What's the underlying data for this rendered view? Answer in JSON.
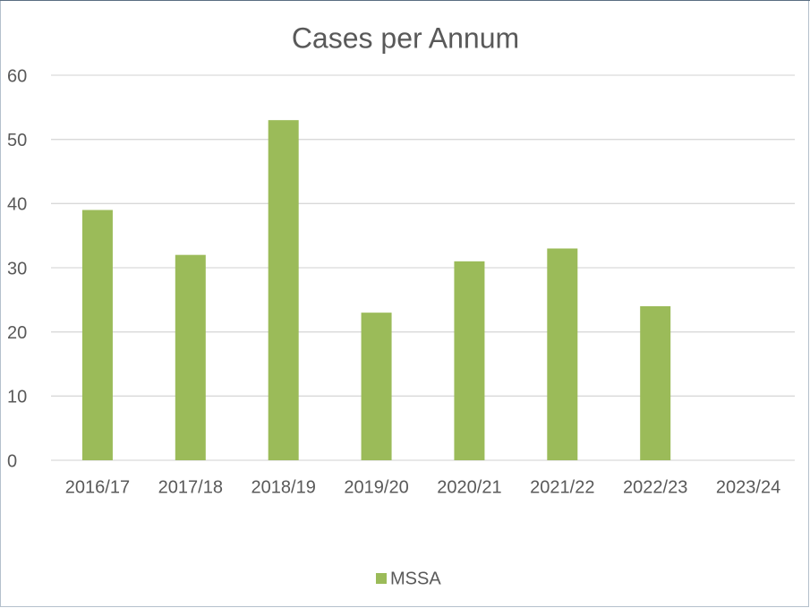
{
  "chart_data": {
    "type": "bar",
    "title": "Cases per Annum",
    "categories": [
      "2016/17",
      "2017/18",
      "2018/19",
      "2019/20",
      "2020/21",
      "2021/22",
      "2022/23",
      "2023/24"
    ],
    "series": [
      {
        "name": "MSSA",
        "color": "#9bbb59",
        "values": [
          39,
          32,
          53,
          23,
          31,
          33,
          24,
          null
        ]
      }
    ],
    "ylim": [
      0,
      60
    ],
    "yticks": [
      0,
      10,
      20,
      30,
      40,
      50,
      60
    ],
    "grid": true,
    "legend": "bottom"
  }
}
